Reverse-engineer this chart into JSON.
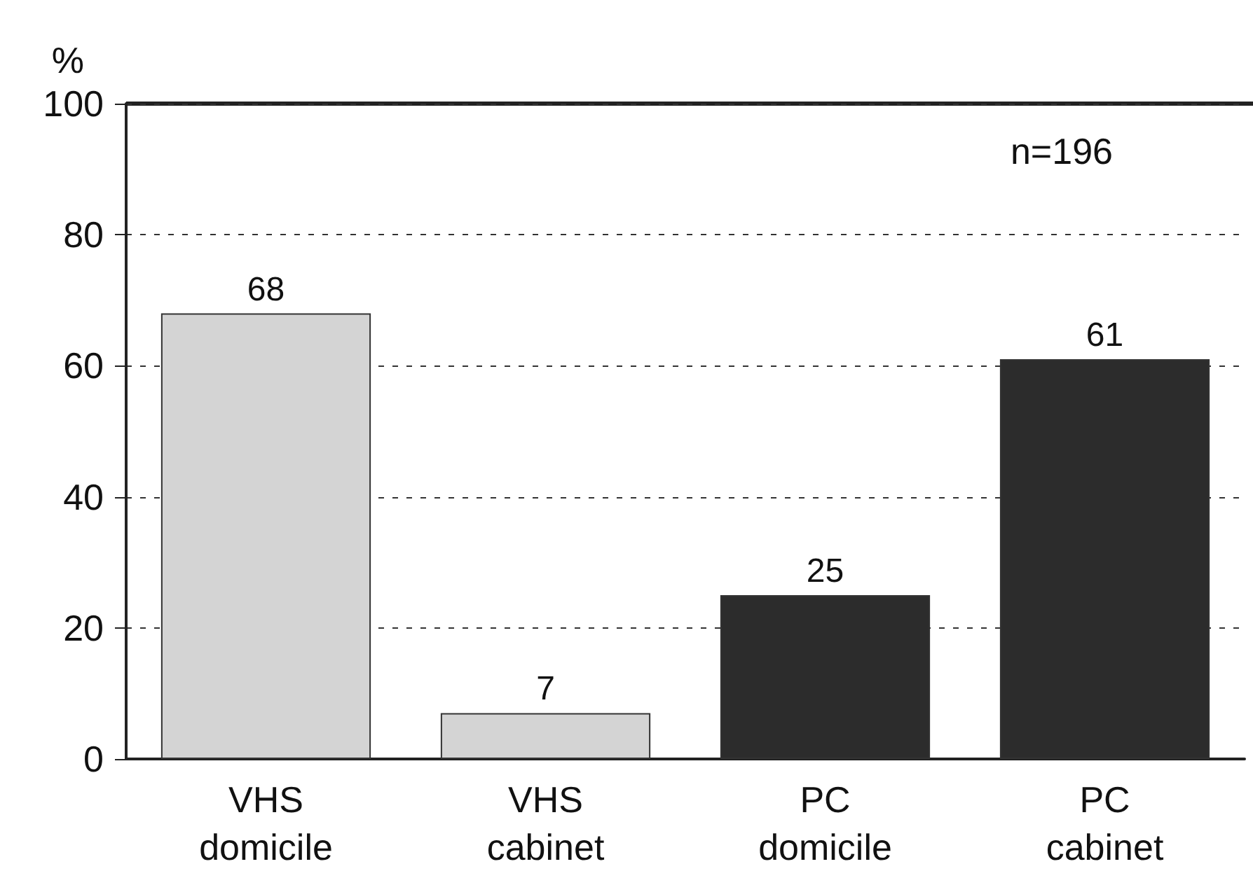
{
  "chart_data": {
    "type": "bar",
    "ylabel": "%",
    "categories": [
      "VHS\ndomicile",
      "VHS\ncabinet",
      "PC\ndomicile",
      "PC\ncabinet"
    ],
    "values": [
      68,
      7,
      25,
      61
    ],
    "colors": [
      "#d4d4d4",
      "#d4d4d4",
      "#2c2c2c",
      "#2c2c2c"
    ],
    "ylim": [
      0,
      100
    ],
    "yticks": [
      0,
      20,
      40,
      60,
      80,
      100
    ],
    "grid": "y",
    "data_labels": true,
    "annotations": [
      "n=196"
    ]
  }
}
